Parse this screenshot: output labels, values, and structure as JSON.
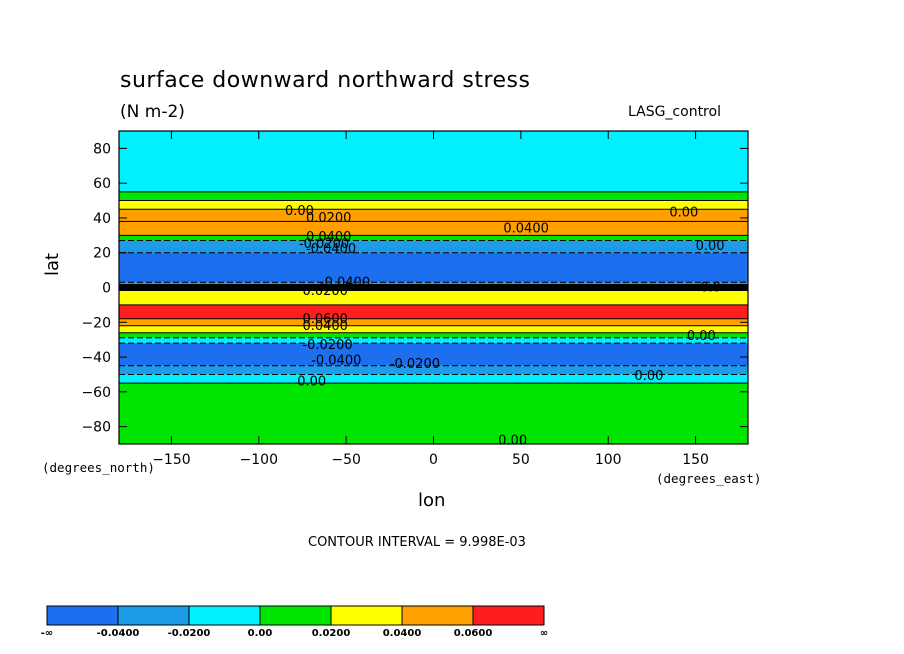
{
  "chart_data": {
    "type": "heatmap",
    "title": "surface downward northward stress",
    "subtitle": "(N m-2)",
    "run_label": "LASG_control",
    "xlabel": "lon",
    "ylabel": "lat",
    "x_units": "(degrees_east)",
    "y_units": "(degrees_north)",
    "xlim": [
      -180,
      180
    ],
    "ylim": [
      -90,
      90
    ],
    "x_ticks": [
      -150,
      -100,
      -50,
      0,
      50,
      100,
      150
    ],
    "y_ticks": [
      -80,
      -60,
      -40,
      -20,
      0,
      20,
      40,
      60,
      80
    ],
    "contour_interval_text": "CONTOUR INTERVAL = 9.998E-03",
    "levels": [
      "-∞",
      "-0.0400",
      "-0.0200",
      "0.00",
      "0.0200",
      "0.0400",
      "0.0600",
      "∞"
    ],
    "colors": [
      "#1e6ef0",
      "#1e9be6",
      "#00f0ff",
      "#00e600",
      "#ffff00",
      "#ffa000",
      "#ff1e1e"
    ],
    "zonal_bands": [
      {
        "lat_min": 55,
        "lat_max": 90,
        "value": -0.01
      },
      {
        "lat_min": 50,
        "lat_max": 55,
        "value": 0.01
      },
      {
        "lat_min": 45,
        "lat_max": 50,
        "value": 0.03
      },
      {
        "lat_min": 38,
        "lat_max": 45,
        "value": 0.05
      },
      {
        "lat_min": 30,
        "lat_max": 38,
        "value": 0.05
      },
      {
        "lat_min": 27,
        "lat_max": 30,
        "value": 0.01
      },
      {
        "lat_min": 20,
        "lat_max": 27,
        "value": -0.03
      },
      {
        "lat_min": 3,
        "lat_max": 20,
        "value": -0.05
      },
      {
        "lat_min": 0,
        "lat_max": 3,
        "value": -0.03
      },
      {
        "lat_min": -10,
        "lat_max": 0,
        "value": 0.03
      },
      {
        "lat_min": -18,
        "lat_max": -10,
        "value": 0.07
      },
      {
        "lat_min": -22,
        "lat_max": -18,
        "value": 0.05
      },
      {
        "lat_min": -26,
        "lat_max": -22,
        "value": 0.03
      },
      {
        "lat_min": -29,
        "lat_max": -26,
        "value": 0.01
      },
      {
        "lat_min": -32,
        "lat_max": -29,
        "value": -0.01
      },
      {
        "lat_min": -45,
        "lat_max": -32,
        "value": -0.05
      },
      {
        "lat_min": -50,
        "lat_max": -45,
        "value": -0.03
      },
      {
        "lat_min": -55,
        "lat_max": -50,
        "value": -0.01
      },
      {
        "lat_min": -90,
        "lat_max": -55,
        "value": 0.01
      }
    ],
    "contour_labels": [
      {
        "text": "0.00",
        "lon": -85,
        "lat": 44
      },
      {
        "text": "0.0200",
        "lon": -73,
        "lat": 40
      },
      {
        "text": "0.0400",
        "lon": 40,
        "lat": 34
      },
      {
        "text": "0.00",
        "lon": 135,
        "lat": 43
      },
      {
        "text": "0.0400",
        "lon": -73,
        "lat": 29
      },
      {
        "text": "-0.0200",
        "lon": -77,
        "lat": 25
      },
      {
        "text": "-0.0400",
        "lon": -73,
        "lat": 22
      },
      {
        "text": "0.00",
        "lon": 150,
        "lat": 24
      },
      {
        "text": "-0.0400",
        "lon": -65,
        "lat": 3
      },
      {
        "text": "0.0200",
        "lon": -75,
        "lat": -2
      },
      {
        "text": "-0.0",
        "lon": 150,
        "lat": 0
      },
      {
        "text": "0.0600",
        "lon": -75,
        "lat": -18
      },
      {
        "text": "0.0400",
        "lon": -75,
        "lat": -22
      },
      {
        "text": "0.00",
        "lon": 145,
        "lat": -28
      },
      {
        "text": "-0.0200",
        "lon": -75,
        "lat": -33
      },
      {
        "text": "-0.0400",
        "lon": -70,
        "lat": -42
      },
      {
        "text": "-0.0200",
        "lon": -25,
        "lat": -44
      },
      {
        "text": "0.00",
        "lon": -78,
        "lat": -54
      },
      {
        "text": "0.00",
        "lon": 115,
        "lat": -51
      },
      {
        "text": "0.00",
        "lon": 37,
        "lat": -88
      }
    ]
  }
}
